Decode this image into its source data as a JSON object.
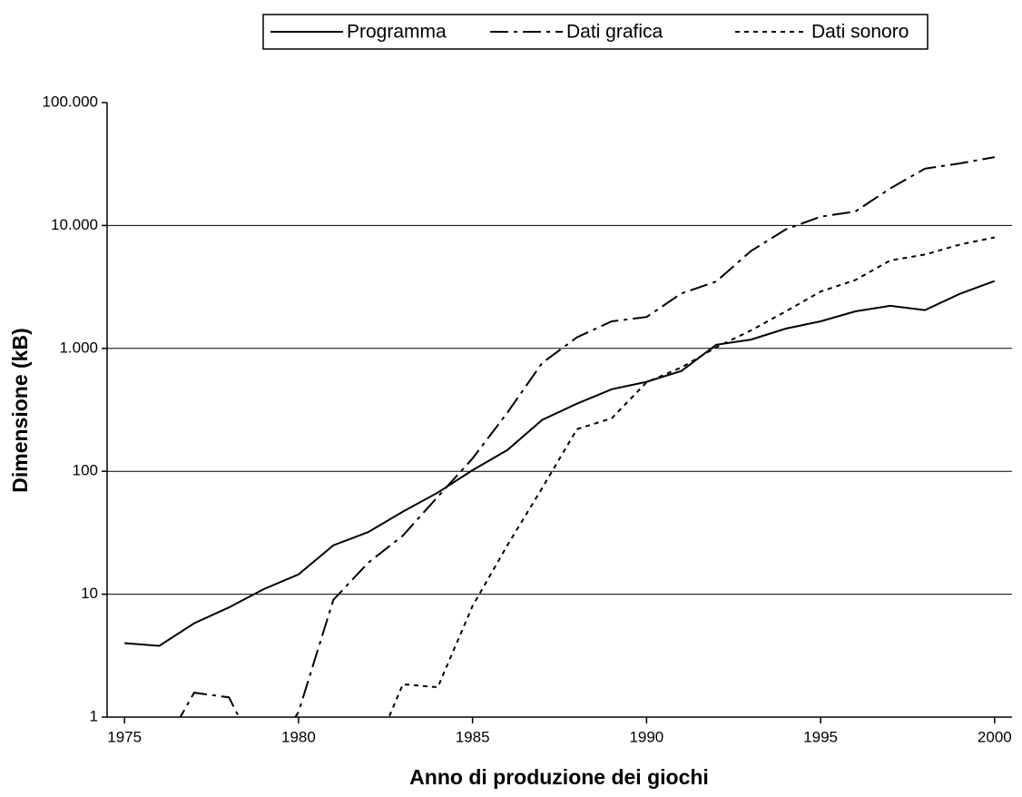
{
  "chart_data": {
    "type": "line",
    "xlabel": "Anno di produzione dei giochi",
    "ylabel": "Dimensione (kB)",
    "x": [
      1975,
      1976,
      1977,
      1978,
      1979,
      1980,
      1981,
      1982,
      1983,
      1984,
      1985,
      1986,
      1987,
      1988,
      1989,
      1990,
      1991,
      1992,
      1993,
      1994,
      1995,
      1996,
      1997,
      1998,
      1999,
      2000
    ],
    "series": [
      {
        "name": "Programma",
        "color": "#000000",
        "dash": "solid",
        "values": [
          4.0,
          3.8,
          5.8,
          7.8,
          11,
          14.5,
          25,
          32,
          47,
          67,
          102,
          149,
          262,
          355,
          465,
          535,
          655,
          1070,
          1180,
          1450,
          1660,
          2000,
          2220,
          2050,
          2780,
          3530
        ]
      },
      {
        "name": "Dati grafica",
        "color": "#000000",
        "dash": "dashdot",
        "values": [
          null,
          0.5,
          1.58,
          1.45,
          0.4,
          1.1,
          9,
          18,
          30,
          62,
          127,
          300,
          760,
          1230,
          1660,
          1800,
          2800,
          3500,
          6200,
          9300,
          11800,
          13000,
          20000,
          29000,
          32000,
          36000
        ]
      },
      {
        "name": "Dati sonoro",
        "color": "#000000",
        "dash": "dotted",
        "values": [
          null,
          null,
          null,
          null,
          null,
          null,
          null,
          0.4,
          1.85,
          1.75,
          8,
          25,
          73,
          220,
          270,
          530,
          700,
          1020,
          1400,
          2000,
          2900,
          3600,
          5200,
          5800,
          7000,
          8000
        ]
      }
    ],
    "xlim": [
      1974.5,
      2000.5
    ],
    "xticks": [
      1975,
      1980,
      1985,
      1990,
      1995,
      2000
    ],
    "ylim": [
      1,
      100000
    ],
    "yticks": [
      1,
      10,
      100,
      {
        "value": 1000,
        "label": "1.000"
      },
      {
        "value": 10000,
        "label": "10.000"
      },
      {
        "value": 100000,
        "label": "100.000"
      }
    ],
    "log_y": true,
    "grid": true,
    "legend": "top"
  }
}
